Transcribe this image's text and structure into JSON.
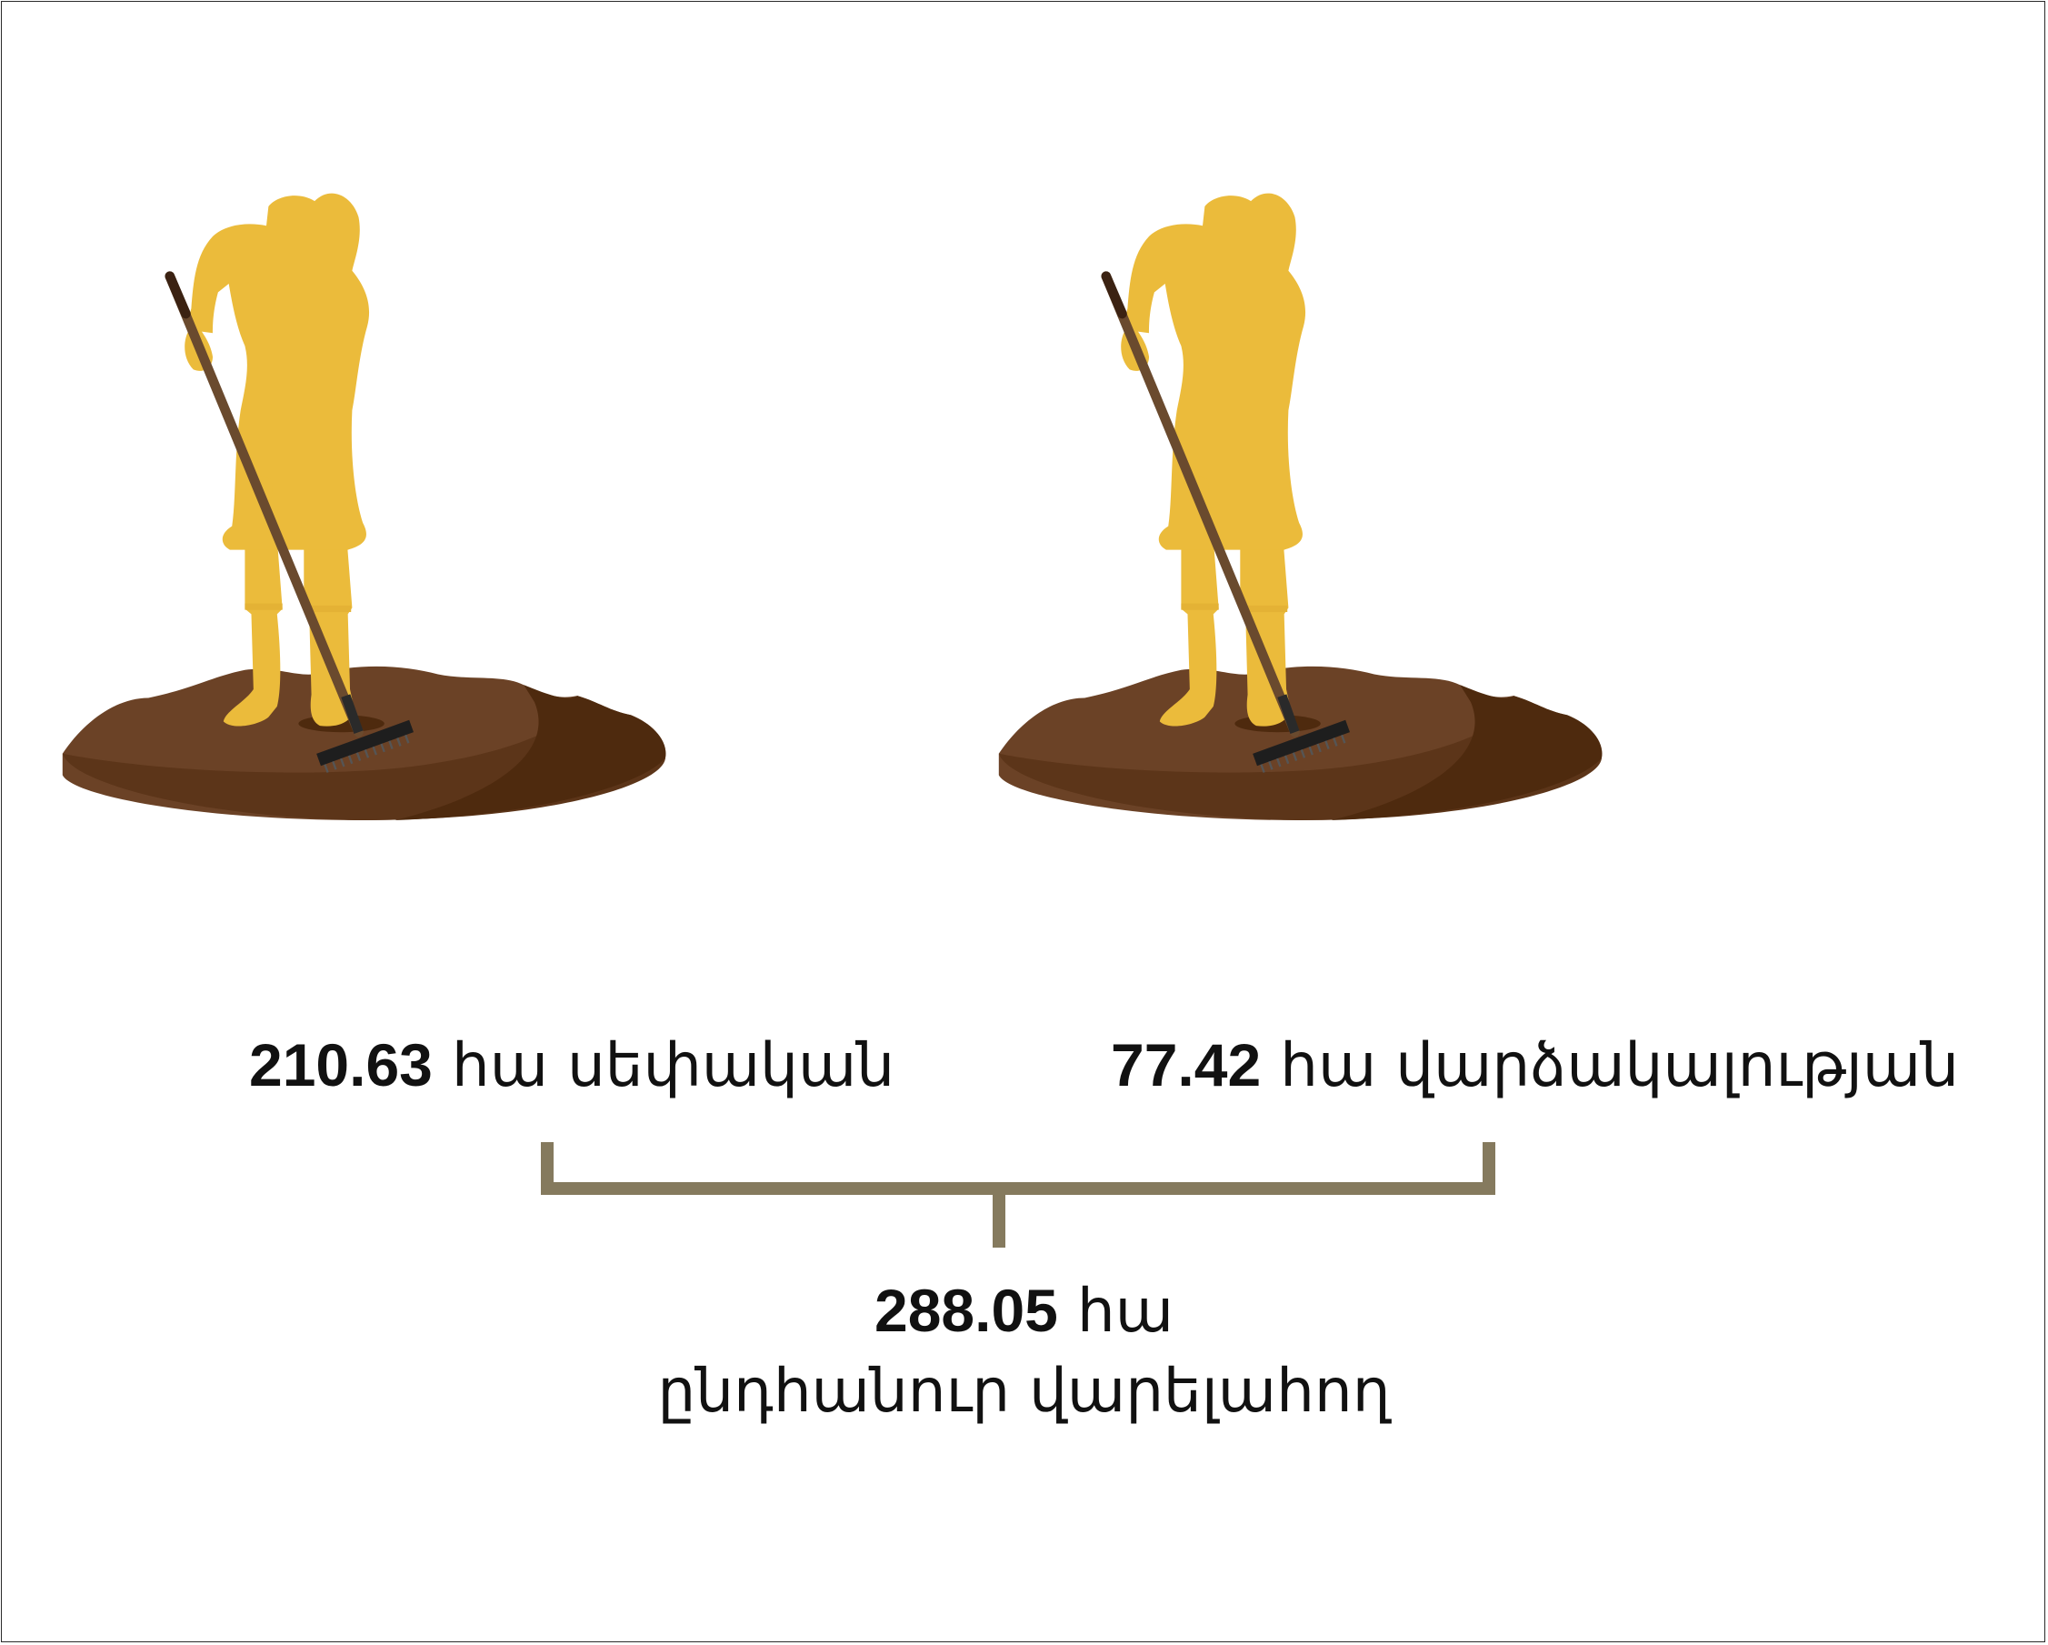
{
  "left_stat": {
    "value": "210.63",
    "unit": "հա",
    "desc": "սեփական"
  },
  "right_stat": {
    "value": "77.42",
    "unit": "հա",
    "desc": "վարձակալության"
  },
  "total_stat": {
    "value": "288.05",
    "unit": "հա",
    "desc": "ընդհանուր վարելահող"
  },
  "colors": {
    "figure": "#EBBB3B",
    "soil_light": "#6B4226",
    "soil_mid": "#5C3519",
    "soil_dark": "#4E2A0E",
    "rake_handle": "#6A4A2E",
    "rake_head": "#1E1E1E",
    "bracket": "#857A5E"
  },
  "icons": [
    "farmer-raking-icon",
    "farmer-raking-icon"
  ]
}
